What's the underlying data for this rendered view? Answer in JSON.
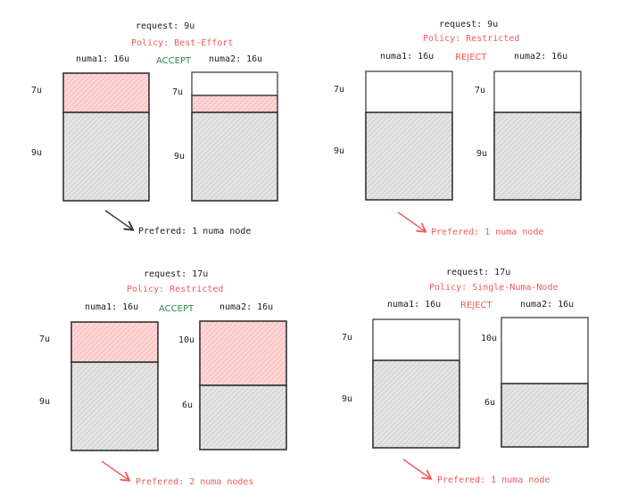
{
  "colors": {
    "accent_red": "#f25b5b",
    "accept_green": "#2c8a4d",
    "pink_fill": "#ffcfcf",
    "gray_fill": "#e4e4e4",
    "outline": "#333333"
  },
  "panels": [
    {
      "request": "request: 9u",
      "policy": "Policy: Best-Effort",
      "verdict": "ACCEPT",
      "prefer": "Prefered: 1 numa node",
      "numa1": {
        "label": "numa1: 16u",
        "top_label": "7u",
        "bottom_label": "9u"
      },
      "numa2": {
        "label": "numa2: 16u",
        "top_label": "7u",
        "bottom_label": "9u"
      }
    },
    {
      "request": "request: 9u",
      "policy": "Policy: Restricted",
      "verdict": "REJECT",
      "prefer": "Prefered: 1 numa node",
      "numa1": {
        "label": "numa1: 16u",
        "top_label": "7u",
        "bottom_label": "9u"
      },
      "numa2": {
        "label": "numa2: 16u",
        "top_label": "7u",
        "bottom_label": "9u"
      }
    },
    {
      "request": "request: 17u",
      "policy": "Policy: Restricted",
      "verdict": "ACCEPT",
      "prefer": "Prefered: 2 numa nodes",
      "numa1": {
        "label": "numa1: 16u",
        "top_label": "7u",
        "bottom_label": "9u"
      },
      "numa2": {
        "label": "numa2: 16u",
        "top_label": "10u",
        "bottom_label": "6u"
      }
    },
    {
      "request": "request: 17u",
      "policy": "Policy: Single-Numa-Node",
      "verdict": "REJECT",
      "prefer": "Prefered: 1 numa node",
      "numa1": {
        "label": "numa1: 16u",
        "top_label": "7u",
        "bottom_label": "9u"
      },
      "numa2": {
        "label": "numa2: 16u",
        "top_label": "10u",
        "bottom_label": "6u"
      }
    }
  ]
}
